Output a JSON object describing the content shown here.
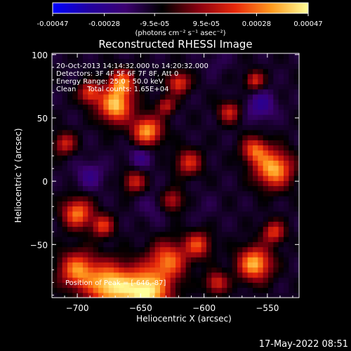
{
  "colorbar": {
    "ticks": [
      -0.00047,
      -0.00028,
      -9.5e-05,
      9.5e-05,
      0.00028,
      0.00047
    ],
    "tick_labels": [
      "-0.00047",
      "-0.00028",
      "-9.5e-05",
      "9.5e-05",
      "0.00028",
      "0.00047"
    ],
    "unit_label": "(photons cm⁻² s⁻¹ asec⁻²)",
    "stops": [
      "#0000ff",
      "#2200a0",
      "#3c0070",
      "#000000",
      "#8a0010",
      "#e8280a",
      "#ff9a1e",
      "#ffff9a"
    ]
  },
  "chart_data": {
    "type": "heatmap",
    "title": "Reconstructed RHESSI Image",
    "xlabel": "Heliocentric X (arcsec)",
    "ylabel": "Heliocentric Y (arcsec)",
    "xlim": [
      -720,
      -525
    ],
    "ylim": [
      -92,
      101
    ],
    "xticks": [
      -700,
      -650,
      -600,
      -550
    ],
    "yticks": [
      -50,
      0,
      50,
      100
    ],
    "zlim": [
      -0.00047,
      0.00047
    ],
    "annotations": [
      "20-Oct-2013 14:14:32.000 to 14:20:32.000",
      "Detectors: 3F 4F 5F 6F 7F 8F, Att 0",
      "Energy Range: 25.0 - 50.0 keV",
      "Clean     Total counts: 1.65E+04"
    ],
    "peak_label": "Position of Peak = [-646,-87]",
    "sources": [
      {
        "x": -646,
        "y": -87,
        "flux": 0.00047,
        "r": 13
      },
      {
        "x": -675,
        "y": -82,
        "flux": 0.0004,
        "r": 12
      },
      {
        "x": -700,
        "y": -70,
        "flux": 0.0003,
        "r": 10
      },
      {
        "x": -628,
        "y": -62,
        "flux": 0.00026,
        "r": 10
      },
      {
        "x": -670,
        "y": 60,
        "flux": 0.0004,
        "r": 9
      },
      {
        "x": -665,
        "y": 78,
        "flux": 0.0003,
        "r": 7
      },
      {
        "x": -690,
        "y": 70,
        "flux": 0.00022,
        "r": 6
      },
      {
        "x": -645,
        "y": 40,
        "flux": 0.00035,
        "r": 8
      },
      {
        "x": -620,
        "y": 78,
        "flux": 0.00022,
        "r": 6
      },
      {
        "x": -630,
        "y": 60,
        "flux": 0.00014,
        "r": 5
      },
      {
        "x": -560,
        "y": 80,
        "flux": 0.00018,
        "r": 5
      },
      {
        "x": -545,
        "y": 10,
        "flux": 0.00038,
        "r": 10
      },
      {
        "x": -560,
        "y": 25,
        "flux": 0.00024,
        "r": 7
      },
      {
        "x": -560,
        "y": -65,
        "flux": 0.00038,
        "r": 9
      },
      {
        "x": -545,
        "y": -40,
        "flux": 0.0002,
        "r": 6
      },
      {
        "x": -700,
        "y": -25,
        "flux": 0.0003,
        "r": 8
      },
      {
        "x": -680,
        "y": -35,
        "flux": 0.0002,
        "r": 6
      },
      {
        "x": -605,
        "y": -50,
        "flux": 0.00022,
        "r": 7
      },
      {
        "x": -590,
        "y": -80,
        "flux": 0.00018,
        "r": 6
      },
      {
        "x": -612,
        "y": 15,
        "flux": 0.00018,
        "r": 7
      },
      {
        "x": -655,
        "y": 0,
        "flux": 0.00016,
        "r": 6
      },
      {
        "x": -625,
        "y": -15,
        "flux": 0.00014,
        "r": 6
      },
      {
        "x": -710,
        "y": 30,
        "flux": 0.00016,
        "r": 6
      },
      {
        "x": -580,
        "y": 55,
        "flux": 0.00016,
        "r": 6
      },
      {
        "x": -690,
        "y": 5,
        "flux": -0.00024,
        "r": 8
      },
      {
        "x": -650,
        "y": 20,
        "flux": -0.00024,
        "r": 7
      },
      {
        "x": -555,
        "y": 60,
        "flux": -0.00028,
        "r": 8
      },
      {
        "x": -640,
        "y": -20,
        "flux": -0.00018,
        "r": 8
      },
      {
        "x": -590,
        "y": 95,
        "flux": -0.00016,
        "r": 7
      },
      {
        "x": -600,
        "y": -20,
        "flux": -0.00014,
        "r": 8
      }
    ]
  },
  "timestamp": "17-May-2022 08:51"
}
